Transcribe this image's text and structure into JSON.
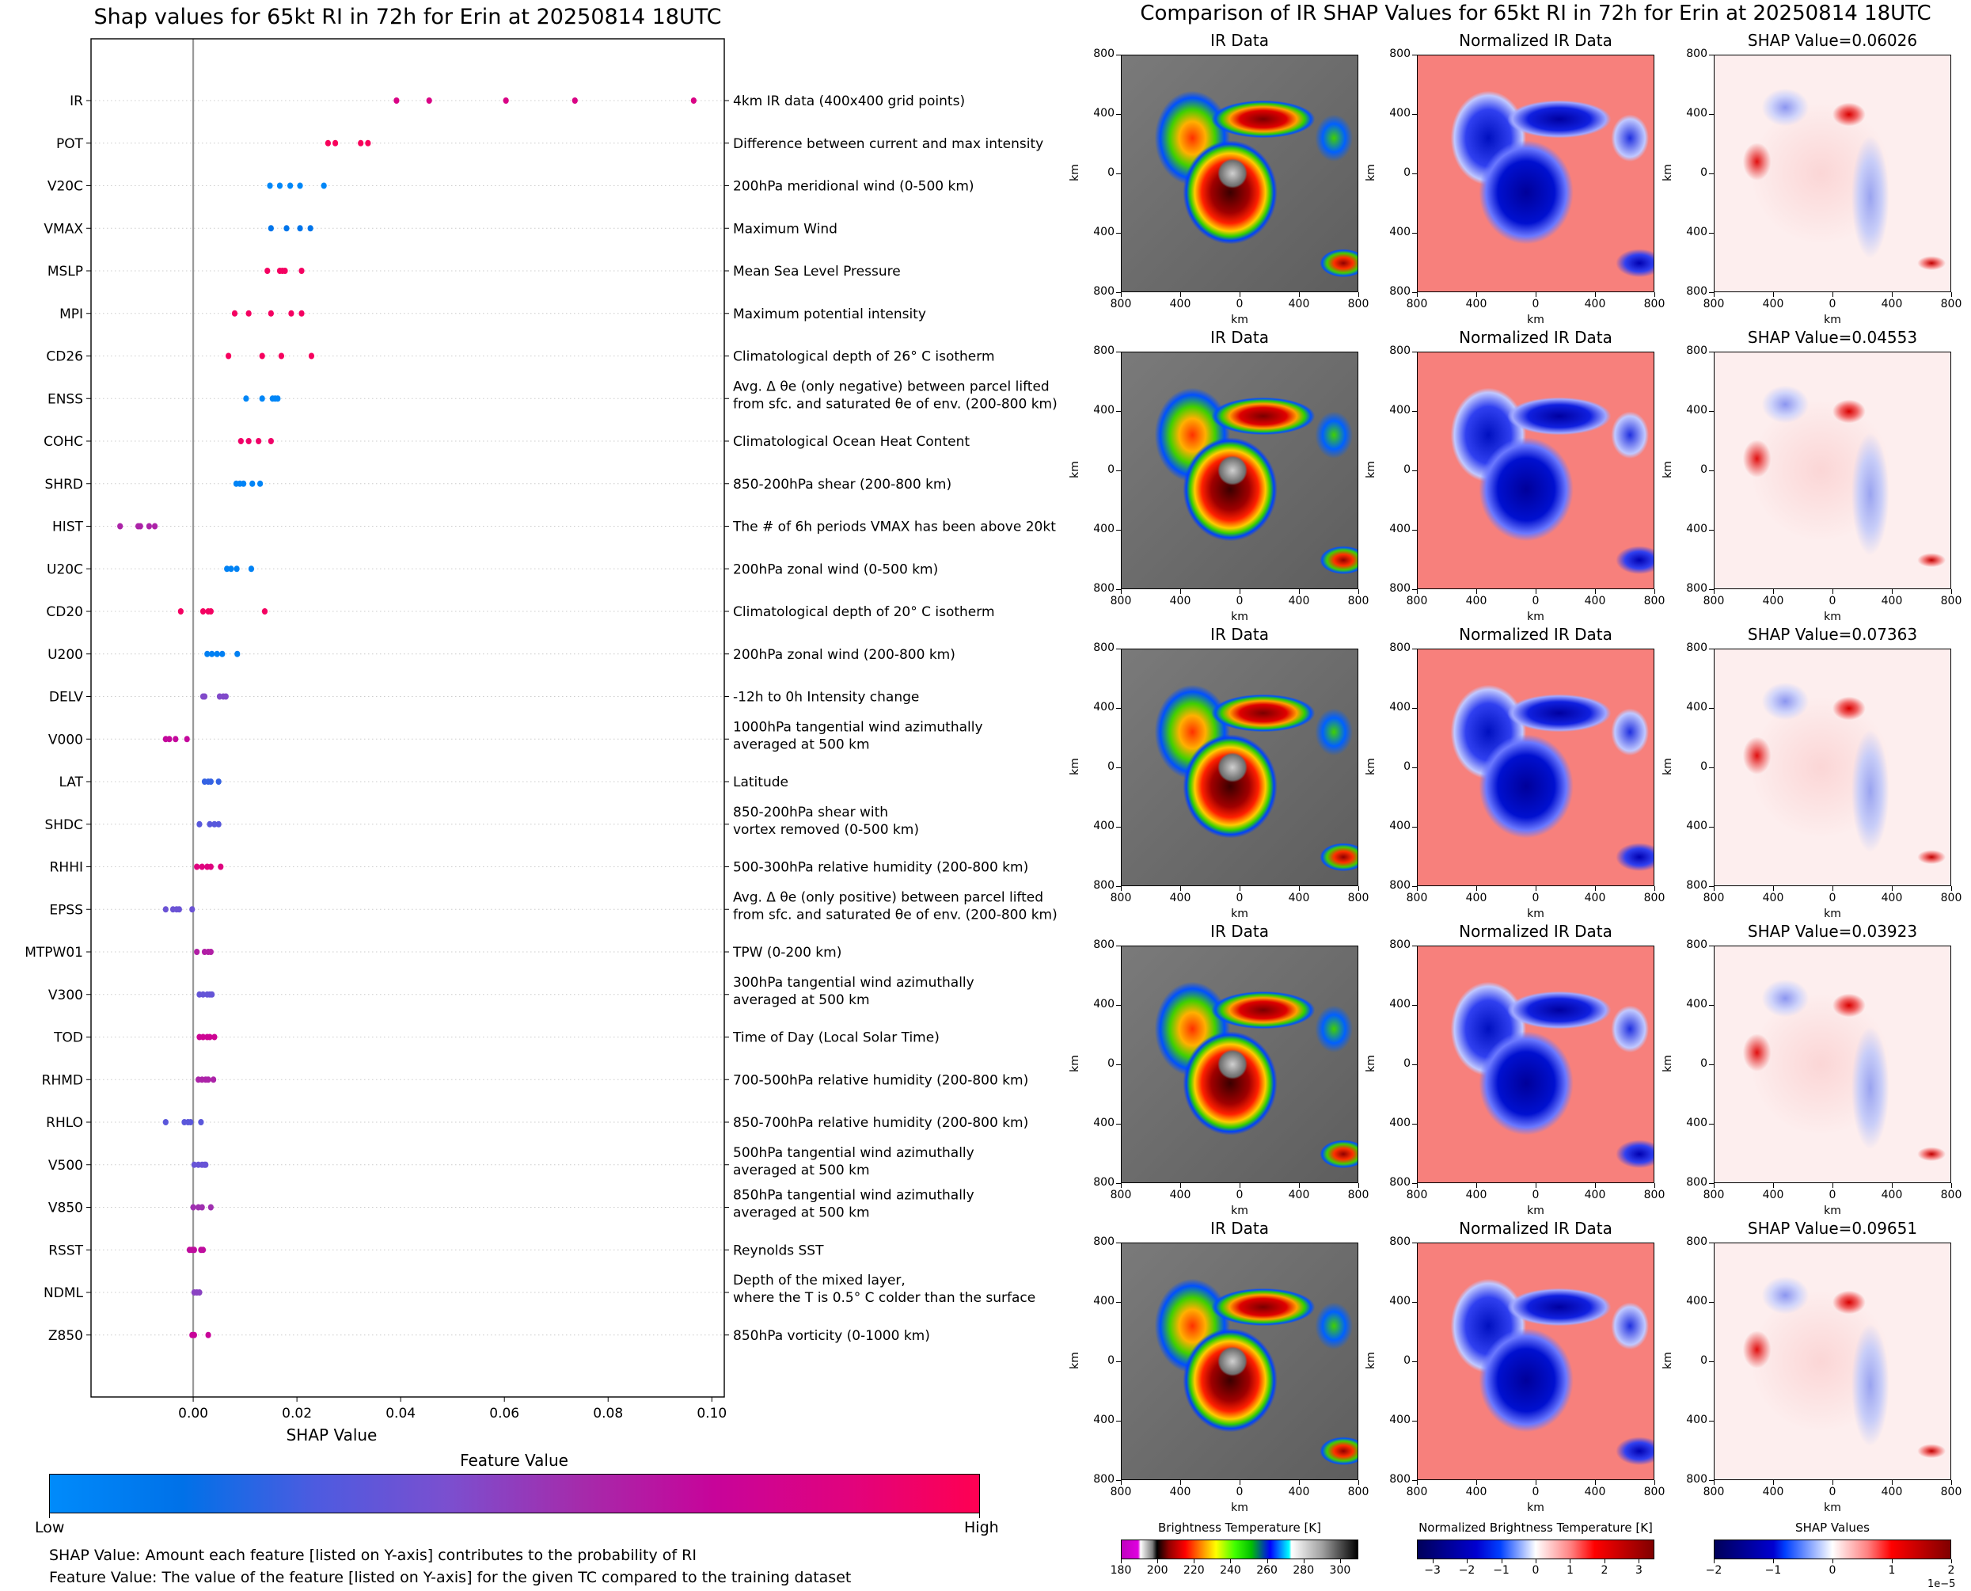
{
  "left": {
    "title": "Shap values for 65kt RI in 72h for Erin at 20250814 18UTC",
    "xlabel": "SHAP Value",
    "colorbar": {
      "title": "Feature Value",
      "low_label": "Low",
      "high_label": "High",
      "colors": [
        "#008bfb",
        "#0071e8",
        "#4d5be0",
        "#7b4fcf",
        "#a52bab",
        "#c7049a",
        "#e0037e",
        "#ff0052"
      ]
    },
    "captions": [
      "SHAP Value: Amount each feature [listed on Y-axis] contributes to the probability of RI",
      "Feature Value: The value of the feature [listed on Y-axis] for the given TC compared to the training dataset"
    ]
  },
  "chart_data": {
    "type": "scatter",
    "title": "Shap values for 65kt RI in 72h for Erin at 20250814 18UTC",
    "xlabel": "SHAP Value",
    "ylabel": "",
    "xlim": [
      -0.0197,
      0.1024
    ],
    "xticks": [
      "0.00",
      "0.02",
      "0.04",
      "0.06",
      "0.08",
      "0.10"
    ],
    "xtick_values": [
      0.0,
      0.02,
      0.04,
      0.06,
      0.08,
      0.1
    ],
    "grid": "horizontal dotted per feature",
    "legend": "colorbar bottom (Feature Value Low→High)",
    "features": [
      {
        "name": "IR",
        "desc": [
          "4km IR data (400x400 grid points)"
        ],
        "feature_value": 0.82,
        "shap": [
          0.0392,
          0.0455,
          0.0603,
          0.0736,
          0.0965
        ]
      },
      {
        "name": "POT",
        "desc": [
          "Difference between current and max intensity"
        ],
        "feature_value": 0.97,
        "shap": [
          0.026,
          0.0274,
          0.0323,
          0.0337
        ]
      },
      {
        "name": "V20C",
        "desc": [
          "200hPa meridional wind (0-500 km)"
        ],
        "feature_value": 0.02,
        "shap": [
          0.0148,
          0.0167,
          0.0187,
          0.0206,
          0.0252
        ]
      },
      {
        "name": "VMAX",
        "desc": [
          "Maximum Wind"
        ],
        "feature_value": 0.12,
        "shap": [
          0.015,
          0.018,
          0.0206,
          0.0226
        ]
      },
      {
        "name": "MSLP",
        "desc": [
          "Mean Sea Level Pressure"
        ],
        "feature_value": 0.95,
        "shap": [
          0.0143,
          0.0167,
          0.0172,
          0.0177,
          0.0209
        ]
      },
      {
        "name": "MPI",
        "desc": [
          "Maximum potential intensity"
        ],
        "feature_value": 0.95,
        "shap": [
          0.008,
          0.0107,
          0.015,
          0.0189,
          0.0209
        ]
      },
      {
        "name": "CD26",
        "desc": [
          "Climatological depth of 26° C isotherm"
        ],
        "feature_value": 0.96,
        "shap": [
          0.0068,
          0.0133,
          0.017,
          0.0228
        ]
      },
      {
        "name": "ENSS",
        "desc": [
          "Avg. Δ θe (only negative) between parcel lifted",
          "from sfc. and saturated θe of env. (200-800 km)"
        ],
        "feature_value": 0.03,
        "shap": [
          0.0102,
          0.0133,
          0.0153,
          0.0158,
          0.0163
        ]
      },
      {
        "name": "COHC",
        "desc": [
          "Climatological Ocean Heat Content"
        ],
        "feature_value": 0.93,
        "shap": [
          0.0092,
          0.0107,
          0.0126,
          0.015
        ]
      },
      {
        "name": "SHRD",
        "desc": [
          "850-200hPa shear (200-800 km)"
        ],
        "feature_value": 0.04,
        "shap": [
          0.0083,
          0.009,
          0.0097,
          0.0114,
          0.0129
        ]
      },
      {
        "name": "HIST",
        "desc": [
          "The # of 6h periods VMAX has been above 20kt"
        ],
        "feature_value": 0.6,
        "shap": [
          -0.0141,
          -0.0106,
          -0.0102,
          -0.0085,
          -0.0074
        ]
      },
      {
        "name": "U20C",
        "desc": [
          "200hPa zonal wind (0-500 km)"
        ],
        "feature_value": 0.05,
        "shap": [
          0.0065,
          0.0073,
          0.0084,
          0.0112
        ]
      },
      {
        "name": "CD20",
        "desc": [
          "Climatological depth of 20° C isotherm"
        ],
        "feature_value": 0.95,
        "shap": [
          -0.0024,
          0.0019,
          0.0029,
          0.0034,
          0.0138
        ]
      },
      {
        "name": "U200",
        "desc": [
          "200hPa zonal wind (200-800 km)"
        ],
        "feature_value": 0.06,
        "shap": [
          0.0027,
          0.0036,
          0.0046,
          0.0056,
          0.0085
        ]
      },
      {
        "name": "DELV",
        "desc": [
          "-12h to 0h Intensity change"
        ],
        "feature_value": 0.45,
        "shap": [
          0.0019,
          0.0022,
          0.0051,
          0.0058,
          0.0063
        ]
      },
      {
        "name": "V000",
        "desc": [
          "1000hPa tangential wind azimuthally",
          "averaged at 500 km"
        ],
        "feature_value": 0.7,
        "shap": [
          -0.0053,
          -0.0046,
          -0.0034,
          -0.0012
        ]
      },
      {
        "name": "LAT",
        "desc": [
          "Latitude"
        ],
        "feature_value": 0.24,
        "shap": [
          0.0022,
          0.0029,
          0.0034,
          0.0049
        ]
      },
      {
        "name": "SHDC",
        "desc": [
          "850-200hPa shear with",
          "vortex removed (0-500 km)"
        ],
        "feature_value": 0.32,
        "shap": [
          0.0012,
          0.0032,
          0.0041,
          0.0049
        ]
      },
      {
        "name": "RHHI",
        "desc": [
          "500-300hPa relative humidity (200-800 km)"
        ],
        "feature_value": 0.85,
        "shap": [
          0.0007,
          0.0017,
          0.0027,
          0.0034,
          0.0053
        ]
      },
      {
        "name": "EPSS",
        "desc": [
          "Avg. Δ θe (only positive) between parcel lifted",
          "from sfc. and saturated θe of env. (200-800 km)"
        ],
        "feature_value": 0.38,
        "shap": [
          -0.0053,
          -0.0039,
          -0.0032,
          -0.0027,
          -0.0002
        ]
      },
      {
        "name": "MTPW01",
        "desc": [
          "TPW (0-200 km)"
        ],
        "feature_value": 0.62,
        "shap": [
          0.0007,
          0.0022,
          0.0029,
          0.0034
        ]
      },
      {
        "name": "V300",
        "desc": [
          "300hPa tangential wind azimuthally",
          "averaged at 500 km"
        ],
        "feature_value": 0.36,
        "shap": [
          0.0012,
          0.0019,
          0.0027,
          0.0032,
          0.0036
        ]
      },
      {
        "name": "TOD",
        "desc": [
          "Time of Day (Local Solar Time)"
        ],
        "feature_value": 0.75,
        "shap": [
          0.0012,
          0.0019,
          0.0027,
          0.0032,
          0.0041
        ]
      },
      {
        "name": "RHMD",
        "desc": [
          "700-500hPa relative humidity (200-800 km)"
        ],
        "feature_value": 0.6,
        "shap": [
          0.001,
          0.0017,
          0.0024,
          0.0029,
          0.0039
        ]
      },
      {
        "name": "RHLO",
        "desc": [
          "850-700hPa relative humidity (200-800 km)"
        ],
        "feature_value": 0.33,
        "shap": [
          -0.0053,
          -0.0017,
          -0.001,
          -0.0005,
          0.0015
        ]
      },
      {
        "name": "V500",
        "desc": [
          "500hPa tangential wind azimuthally",
          "averaged at 500 km"
        ],
        "feature_value": 0.37,
        "shap": [
          0.0002,
          0.001,
          0.0017,
          0.0022,
          0.0024
        ]
      },
      {
        "name": "V850",
        "desc": [
          "850hPa tangential wind azimuthally",
          "averaged at 500 km"
        ],
        "feature_value": 0.55,
        "shap": [
          0.0,
          0.001,
          0.0017,
          0.0034
        ]
      },
      {
        "name": "RSST",
        "desc": [
          "Reynolds SST"
        ],
        "feature_value": 0.68,
        "shap": [
          -0.0007,
          -0.0002,
          0.0002,
          0.0015,
          0.0019
        ]
      },
      {
        "name": "NDML",
        "desc": [
          "Depth of the mixed layer,",
          "where the T is 0.5° C colder than the surface"
        ],
        "feature_value": 0.48,
        "shap": [
          0.0002,
          0.0007,
          0.0012
        ]
      },
      {
        "name": "Z850",
        "desc": [
          "850hPa vorticity (0-1000 km)"
        ],
        "feature_value": 0.72,
        "shap": [
          -0.0002,
          0.0002,
          0.0029
        ]
      }
    ]
  },
  "right": {
    "title": "Comparison of IR SHAP Values for 65kt RI in 72h for Erin at 20250814 18UTC",
    "col_titles": [
      "IR Data",
      "Normalized IR Data"
    ],
    "shap_title_prefix": "SHAP Value=",
    "shap_values": [
      "0.06026",
      "0.04553",
      "0.07363",
      "0.03923",
      "0.09651"
    ],
    "axis_label": "km",
    "axis_ticks": [
      "800",
      "400",
      "0",
      "400",
      "800"
    ],
    "colorbars": [
      {
        "title": "Brightness Temperature [K]",
        "ticks": [
          "180",
          "200",
          "220",
          "240",
          "260",
          "280",
          "300"
        ],
        "range": [
          180,
          310
        ]
      },
      {
        "title": "Normalized Brightness Temperature [K]",
        "ticks": [
          "−3",
          "−2",
          "−1",
          "0",
          "1",
          "2",
          "3"
        ],
        "range": [
          -3.45,
          3.45
        ]
      },
      {
        "title": "SHAP Values",
        "ticks": [
          "−2",
          "−1",
          "0",
          "1",
          "2"
        ],
        "range": [
          -2,
          2
        ],
        "offset_label": "1e−5"
      }
    ]
  }
}
